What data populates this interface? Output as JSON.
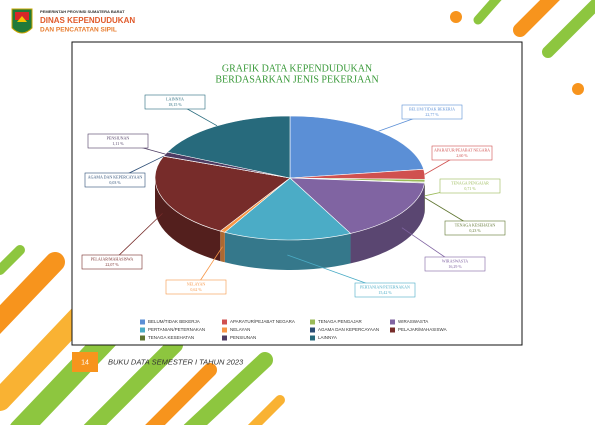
{
  "header": {
    "line1": "PEMERINTAH PROVINSI SUMATERA BARAT",
    "line2": "DINAS KEPENDUDUKAN",
    "line3": "DAN PENCATATAN SIPIL"
  },
  "chart_data": {
    "type": "pie",
    "title": [
      "GRAFIK DATA KEPENDUDUKAN",
      "BERDASARKAN JENIS PEKERJAAN"
    ],
    "categories": [
      "BELUM/TIDAK BEKERJA",
      "APARATUR/PEJABAT NEGARA",
      "TENAGA PENGAJAR",
      "WIRASWASTA",
      "PERTANIAN/PETERNAKAN",
      "NELAYAN",
      "AGAMA DAN KEPERCAYAAN",
      "PELAJAR/MAHASISWA",
      "TENAGA KESEHATAN",
      "PENSIUNAN",
      "LAINNYA"
    ],
    "values": [
      22.77,
      2.6,
      0.71,
      16.29,
      15.42,
      0.62,
      0.03,
      22.07,
      0.23,
      1.11,
      18.15
    ],
    "value_labels": [
      "22,77 %",
      "2,60 %",
      "0,71 %",
      "16,29 %",
      "15,42 %",
      "0,62 %",
      "0,03 %",
      "22,07 %",
      "0,23 %",
      "1,11 %",
      "18,15 %"
    ],
    "colors": [
      "#5b8fd6",
      "#d0504f",
      "#9bbb59",
      "#8064a2",
      "#4bacc6",
      "#f79646",
      "#2c4d75",
      "#772c2a",
      "#5f7530",
      "#4d3b62",
      "#276a7c"
    ],
    "legend": "bottom"
  },
  "footer": {
    "page": "14",
    "text": "BUKU DATA SEMESTER I TAHUN 2023"
  }
}
